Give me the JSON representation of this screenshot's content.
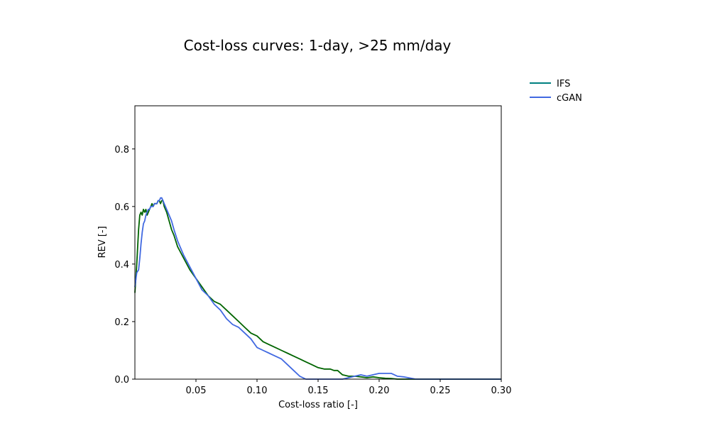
{
  "chart_data": {
    "type": "line",
    "title": "Cost-loss curves: 1-day, >25 mm/day",
    "xlabel": "Cost-loss ratio [-]",
    "ylabel": "REV [-]",
    "xlim": [
      0.0,
      0.3
    ],
    "ylim": [
      0.0,
      0.95
    ],
    "xticks": [
      0.05,
      0.1,
      0.15,
      0.2,
      0.25,
      0.3
    ],
    "xtick_labels": [
      "0.05",
      "0.10",
      "0.15",
      "0.20",
      "0.25",
      "0.30"
    ],
    "yticks": [
      0.0,
      0.2,
      0.4,
      0.6,
      0.8
    ],
    "ytick_labels": [
      "0.0",
      "0.2",
      "0.4",
      "0.6",
      "0.8"
    ],
    "grid": false,
    "legend_position": "top-right",
    "series": [
      {
        "name": "IFS",
        "legend_color": "#008080",
        "color": "#006400",
        "x": [
          0.0,
          0.0015,
          0.003,
          0.004,
          0.005,
          0.006,
          0.007,
          0.008,
          0.009,
          0.01,
          0.011,
          0.012,
          0.013,
          0.014,
          0.015,
          0.016,
          0.017,
          0.018,
          0.019,
          0.02,
          0.021,
          0.022,
          0.023,
          0.024,
          0.026,
          0.028,
          0.03,
          0.032,
          0.035,
          0.04,
          0.045,
          0.05,
          0.055,
          0.06,
          0.065,
          0.07,
          0.075,
          0.08,
          0.085,
          0.09,
          0.095,
          0.1,
          0.105,
          0.11,
          0.115,
          0.12,
          0.125,
          0.13,
          0.135,
          0.14,
          0.145,
          0.15,
          0.155,
          0.16,
          0.163,
          0.166,
          0.17,
          0.175,
          0.18,
          0.185,
          0.19,
          0.195,
          0.2,
          0.205,
          0.21,
          0.215,
          0.22,
          0.23,
          0.25,
          0.27,
          0.3
        ],
        "y": [
          0.3,
          0.4,
          0.52,
          0.57,
          0.58,
          0.57,
          0.59,
          0.58,
          0.59,
          0.57,
          0.58,
          0.59,
          0.6,
          0.61,
          0.6,
          0.61,
          0.61,
          0.61,
          0.62,
          0.62,
          0.61,
          0.62,
          0.62,
          0.6,
          0.58,
          0.55,
          0.52,
          0.5,
          0.46,
          0.42,
          0.38,
          0.35,
          0.32,
          0.29,
          0.27,
          0.26,
          0.24,
          0.22,
          0.2,
          0.18,
          0.16,
          0.15,
          0.13,
          0.12,
          0.11,
          0.1,
          0.09,
          0.08,
          0.07,
          0.06,
          0.05,
          0.04,
          0.035,
          0.035,
          0.03,
          0.03,
          0.015,
          0.01,
          0.01,
          0.008,
          0.005,
          0.008,
          0.005,
          0.003,
          0.002,
          0.0,
          0.0,
          0.0,
          0.0,
          0.0,
          0.0
        ]
      },
      {
        "name": "cGAN",
        "color": "#4169E1",
        "x": [
          0.0,
          0.0015,
          0.003,
          0.004,
          0.005,
          0.006,
          0.007,
          0.008,
          0.009,
          0.01,
          0.011,
          0.012,
          0.013,
          0.014,
          0.015,
          0.016,
          0.017,
          0.018,
          0.019,
          0.02,
          0.021,
          0.022,
          0.023,
          0.024,
          0.026,
          0.028,
          0.03,
          0.032,
          0.035,
          0.04,
          0.045,
          0.05,
          0.055,
          0.06,
          0.065,
          0.07,
          0.075,
          0.08,
          0.085,
          0.09,
          0.095,
          0.1,
          0.105,
          0.11,
          0.115,
          0.12,
          0.125,
          0.13,
          0.135,
          0.14,
          0.15,
          0.16,
          0.17,
          0.175,
          0.18,
          0.185,
          0.19,
          0.195,
          0.2,
          0.205,
          0.21,
          0.215,
          0.22,
          0.23,
          0.25,
          0.27,
          0.3
        ],
        "y": [
          0.32,
          0.37,
          0.38,
          0.42,
          0.47,
          0.51,
          0.54,
          0.55,
          0.57,
          0.58,
          0.59,
          0.59,
          0.6,
          0.6,
          0.6,
          0.61,
          0.61,
          0.61,
          0.62,
          0.62,
          0.63,
          0.63,
          0.62,
          0.61,
          0.59,
          0.57,
          0.55,
          0.52,
          0.48,
          0.43,
          0.39,
          0.35,
          0.31,
          0.29,
          0.26,
          0.24,
          0.21,
          0.19,
          0.18,
          0.16,
          0.14,
          0.11,
          0.1,
          0.09,
          0.08,
          0.07,
          0.05,
          0.03,
          0.01,
          0.0,
          0.0,
          0.0,
          0.0,
          0.005,
          0.01,
          0.015,
          0.01,
          0.015,
          0.02,
          0.02,
          0.02,
          0.01,
          0.008,
          0.0,
          0.0,
          0.0,
          0.0
        ]
      }
    ]
  }
}
